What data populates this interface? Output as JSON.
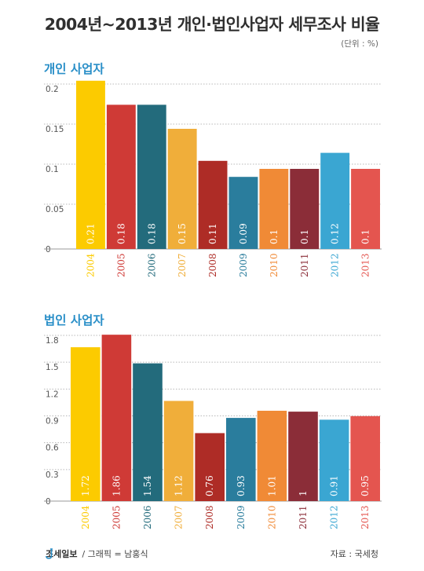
{
  "header": {
    "title": "2004년~2013년 개인·법인사업자 세무조사 비율",
    "unit": "(단위 : %)"
  },
  "footer": {
    "brand": "조세일보",
    "credit": "/ 그래픽 = 남홍식",
    "source": "자료 : 국세청"
  },
  "colors": [
    "#fccb00",
    "#cf3a36",
    "#236b7c",
    "#f0ae3a",
    "#ae2c26",
    "#2a7d9d",
    "#f08a36",
    "#8b2d38",
    "#3aa6d2",
    "#e4554f"
  ],
  "chart_data": [
    {
      "type": "bar",
      "title": "개인 사업자",
      "categories": [
        "2004",
        "2005",
        "2006",
        "2007",
        "2008",
        "2009",
        "2010",
        "2011",
        "2012",
        "2013"
      ],
      "values": [
        0.21,
        0.18,
        0.18,
        0.15,
        0.11,
        0.09,
        0.1,
        0.1,
        0.12,
        0.1
      ],
      "value_labels": [
        "0.21",
        "0.18",
        "0.18",
        "0.15",
        "0.11",
        "0.09",
        "0.1",
        "0.1",
        "0.12",
        "0.1"
      ],
      "yticks": [
        "0",
        "0.05",
        "0.1",
        "0.15",
        "0.2"
      ],
      "ylim": [
        0,
        0.2
      ],
      "grid": true
    },
    {
      "type": "bar",
      "title": "법인 사업자",
      "categories": [
        "2004",
        "2005",
        "2006",
        "2007",
        "2008",
        "2009",
        "2010",
        "2011",
        "2012",
        "2013"
      ],
      "values": [
        1.72,
        1.86,
        1.54,
        1.12,
        0.76,
        0.93,
        1.01,
        1,
        0.91,
        0.95
      ],
      "value_labels": [
        "1.72",
        "1.86",
        "1.54",
        "1.12",
        "0.76",
        "0.93",
        "1.01",
        "1",
        "0.91",
        "0.95"
      ],
      "yticks": [
        "0",
        "0.3",
        "0.6",
        "0.9",
        "1.2",
        "1.5",
        "1.8"
      ],
      "ylim": [
        0,
        1.8
      ],
      "grid": true
    }
  ]
}
